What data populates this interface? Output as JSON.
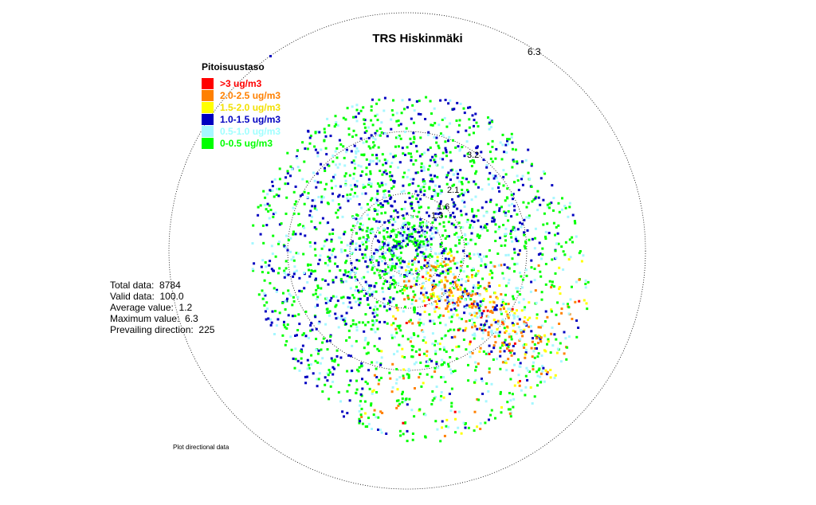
{
  "chart_data": {
    "type": "scatter",
    "title": "TRS Hiskinmäki",
    "ring_labels": [
      "1.3",
      "1.6",
      "2.1",
      "3.2",
      "6.3"
    ],
    "legend": {
      "title": "Pitoisuustaso",
      "items": [
        {
          "label": ">3 ug/m3",
          "color": "#ff0000"
        },
        {
          "label": "2.0-2.5 ug/m3",
          "color": "#ff8000"
        },
        {
          "label": "1.5-2.0 ug/m3",
          "color": "#ffff00"
        },
        {
          "label": "1.0-1.5 ug/m3",
          "color": "#0000c0"
        },
        {
          "label": "0.5-1.0 ug/m3",
          "color": "#a0ffff"
        },
        {
          "label": "0-0.5 ug/m3",
          "color": "#00ff00"
        }
      ]
    },
    "stats": [
      {
        "label": "Total data:",
        "value": "8784"
      },
      {
        "label": "Valid data:",
        "value": "100.0"
      },
      {
        "label": "Average value:",
        "value": "1.2"
      },
      {
        "label": "Maximum value:",
        "value": "6.3"
      },
      {
        "label": "Prevailing direction:",
        "value": "225"
      }
    ],
    "footnote": "Plot directional data",
    "data_summary": {
      "total_points": 8784,
      "max_value": 6.3,
      "average_value": 1.2,
      "prevailing_direction_deg": 225
    }
  }
}
